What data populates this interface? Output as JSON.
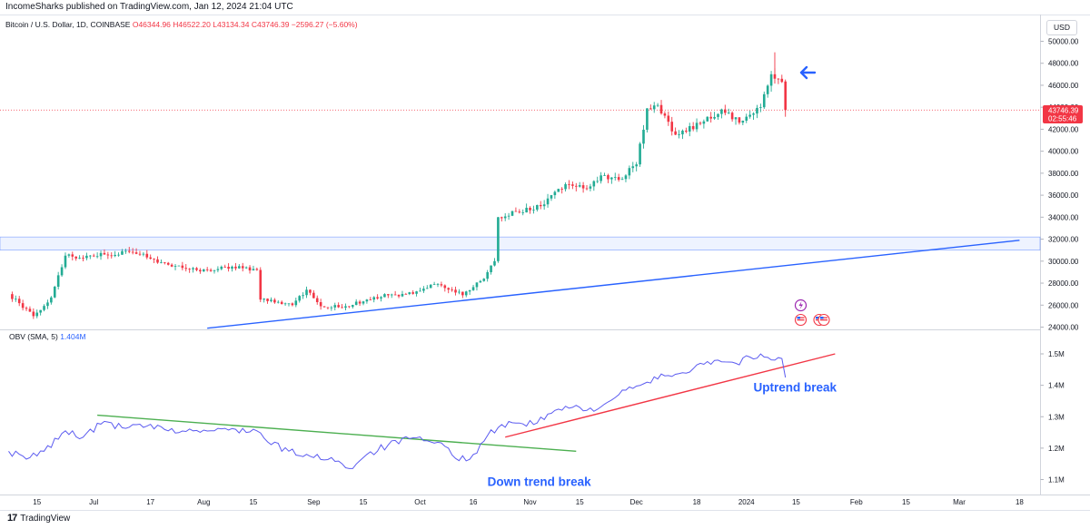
{
  "header": {
    "published": "IncomeSharks published on TradingView.com, Jan 12, 2024 21:04 UTC"
  },
  "symbol": {
    "name": "Bitcoin / U.S. Dollar, 1D, COINBASE",
    "open": "O46344.96",
    "high": "H46522.20",
    "low": "L43134.34",
    "close": "C43746.39",
    "change": "−2596.27 (−5.60%)"
  },
  "currency_button": "USD",
  "price_badge": {
    "price": "43746.39",
    "timer": "02:55:46"
  },
  "obv_label": {
    "name": "OBV (SMA, 5)",
    "value": "1.404M"
  },
  "footer": {
    "logo": "17",
    "brand": "TradingView"
  },
  "colors": {
    "up": "#22ab94",
    "down": "#f23645",
    "trend": "#2962ff",
    "obv": "#5b5bf0",
    "green_line": "#4caf50",
    "red_line": "#f23645"
  },
  "chart_data": {
    "type": "candlestick",
    "title": "Bitcoin / U.S. Dollar, 1D, COINBASE",
    "price_axis": {
      "ylim": [
        23800,
        51000
      ],
      "ticks": [
        "50000.00",
        "48000.00",
        "46000.00",
        "44000.00",
        "42000.00",
        "40000.00",
        "38000.00",
        "36000.00",
        "34000.00",
        "32000.00",
        "30000.00",
        "28000.00",
        "26000.00",
        "24000.00"
      ]
    },
    "obv_axis": {
      "ylim": [
        1.07,
        1.57
      ],
      "ticks": [
        {
          "label": "1.5M",
          "v": 1.5
        },
        {
          "label": "1.4M",
          "v": 1.4
        },
        {
          "label": "1.3M",
          "v": 1.3
        },
        {
          "label": "1.2M",
          "v": 1.2
        },
        {
          "label": "1.1M",
          "v": 1.1
        }
      ]
    },
    "time_axis": {
      "xlim": [
        0,
        285
      ],
      "ticks": [
        {
          "label": "15",
          "d": 8
        },
        {
          "label": "Jul",
          "d": 24
        },
        {
          "label": "17",
          "d": 40
        },
        {
          "label": "Aug",
          "d": 55
        },
        {
          "label": "15",
          "d": 69
        },
        {
          "label": "Sep",
          "d": 86
        },
        {
          "label": "15",
          "d": 100
        },
        {
          "label": "Oct",
          "d": 116
        },
        {
          "label": "16",
          "d": 131
        },
        {
          "label": "Nov",
          "d": 147
        },
        {
          "label": "15",
          "d": 161
        },
        {
          "label": "Dec",
          "d": 177
        },
        {
          "label": "18",
          "d": 194
        },
        {
          "label": "2024",
          "d": 208
        },
        {
          "label": "15",
          "d": 222
        },
        {
          "label": "Feb",
          "d": 239
        },
        {
          "label": "15",
          "d": 253
        },
        {
          "label": "Mar",
          "d": 268
        },
        {
          "label": "18",
          "d": 285
        }
      ]
    },
    "resistance_zone": [
      31000,
      32200
    ],
    "last_price_line": 43746.39,
    "anchors": [
      {
        "d": 0,
        "p": 27000
      },
      {
        "d": 7,
        "p": 25000
      },
      {
        "d": 12,
        "p": 26700
      },
      {
        "d": 16,
        "p": 30500
      },
      {
        "d": 20,
        "p": 30300
      },
      {
        "d": 27,
        "p": 30600
      },
      {
        "d": 35,
        "p": 30800
      },
      {
        "d": 37,
        "p": 30600
      },
      {
        "d": 43,
        "p": 29900
      },
      {
        "d": 50,
        "p": 29300
      },
      {
        "d": 56,
        "p": 29200
      },
      {
        "d": 63,
        "p": 29500
      },
      {
        "d": 70,
        "p": 29200
      },
      {
        "d": 71,
        "p": 26500
      },
      {
        "d": 80,
        "p": 26000
      },
      {
        "d": 84,
        "p": 27400
      },
      {
        "d": 88,
        "p": 25900
      },
      {
        "d": 95,
        "p": 25900
      },
      {
        "d": 102,
        "p": 26500
      },
      {
        "d": 106,
        "p": 27000
      },
      {
        "d": 110,
        "p": 26800
      },
      {
        "d": 116,
        "p": 27300
      },
      {
        "d": 120,
        "p": 27900
      },
      {
        "d": 125,
        "p": 27400
      },
      {
        "d": 128,
        "p": 26900
      },
      {
        "d": 134,
        "p": 28400
      },
      {
        "d": 137,
        "p": 30000
      },
      {
        "d": 138,
        "p": 34000
      },
      {
        "d": 143,
        "p": 34500
      },
      {
        "d": 150,
        "p": 35000
      },
      {
        "d": 157,
        "p": 37000
      },
      {
        "d": 163,
        "p": 36600
      },
      {
        "d": 167,
        "p": 37800
      },
      {
        "d": 172,
        "p": 37400
      },
      {
        "d": 177,
        "p": 38800
      },
      {
        "d": 180,
        "p": 43900
      },
      {
        "d": 183,
        "p": 44200
      },
      {
        "d": 188,
        "p": 41500
      },
      {
        "d": 195,
        "p": 42500
      },
      {
        "d": 201,
        "p": 43800
      },
      {
        "d": 206,
        "p": 42600
      },
      {
        "d": 212,
        "p": 44000
      },
      {
        "d": 215,
        "p": 47000
      },
      {
        "d": 216,
        "p": 46600
      },
      {
        "d": 218,
        "p": 46300
      },
      {
        "d": 219,
        "p": 43746.39
      }
    ],
    "obv_anchors": [
      {
        "d": 0,
        "v": 1.19
      },
      {
        "d": 5,
        "v": 1.165
      },
      {
        "d": 10,
        "v": 1.19
      },
      {
        "d": 16,
        "v": 1.255
      },
      {
        "d": 21,
        "v": 1.235
      },
      {
        "d": 27,
        "v": 1.285
      },
      {
        "d": 32,
        "v": 1.265
      },
      {
        "d": 39,
        "v": 1.27
      },
      {
        "d": 45,
        "v": 1.255
      },
      {
        "d": 52,
        "v": 1.255
      },
      {
        "d": 58,
        "v": 1.255
      },
      {
        "d": 64,
        "v": 1.26
      },
      {
        "d": 70,
        "v": 1.255
      },
      {
        "d": 73,
        "v": 1.22
      },
      {
        "d": 79,
        "v": 1.19
      },
      {
        "d": 86,
        "v": 1.17
      },
      {
        "d": 91,
        "v": 1.17
      },
      {
        "d": 96,
        "v": 1.135
      },
      {
        "d": 101,
        "v": 1.18
      },
      {
        "d": 107,
        "v": 1.21
      },
      {
        "d": 113,
        "v": 1.23
      },
      {
        "d": 119,
        "v": 1.22
      },
      {
        "d": 124,
        "v": 1.2
      },
      {
        "d": 127,
        "v": 1.16
      },
      {
        "d": 131,
        "v": 1.18
      },
      {
        "d": 135,
        "v": 1.24
      },
      {
        "d": 139,
        "v": 1.275
      },
      {
        "d": 144,
        "v": 1.28
      },
      {
        "d": 149,
        "v": 1.28
      },
      {
        "d": 154,
        "v": 1.32
      },
      {
        "d": 159,
        "v": 1.33
      },
      {
        "d": 163,
        "v": 1.32
      },
      {
        "d": 168,
        "v": 1.34
      },
      {
        "d": 172,
        "v": 1.37
      },
      {
        "d": 176,
        "v": 1.39
      },
      {
        "d": 180,
        "v": 1.41
      },
      {
        "d": 185,
        "v": 1.43
      },
      {
        "d": 190,
        "v": 1.44
      },
      {
        "d": 195,
        "v": 1.47
      },
      {
        "d": 200,
        "v": 1.48
      },
      {
        "d": 205,
        "v": 1.47
      },
      {
        "d": 209,
        "v": 1.49
      },
      {
        "d": 213,
        "v": 1.49
      },
      {
        "d": 216,
        "v": 1.48
      },
      {
        "d": 218,
        "v": 1.485
      },
      {
        "d": 219,
        "v": 1.425
      }
    ],
    "trendlines": [
      {
        "name": "price-support-trendline",
        "pane": "price",
        "color": "#2962ff",
        "from": {
          "d": 56,
          "p": 23900
        },
        "to": {
          "d": 285,
          "p": 31900
        }
      },
      {
        "name": "obv-down-trendline",
        "pane": "obv",
        "color": "#4caf50",
        "from": {
          "d": 25,
          "v": 1.305
        },
        "to": {
          "d": 160,
          "v": 1.19
        }
      },
      {
        "name": "obv-up-trendline",
        "pane": "obv",
        "color": "#f23645",
        "from": {
          "d": 140,
          "v": 1.235
        },
        "to": {
          "d": 233,
          "v": 1.5
        }
      }
    ],
    "annotations": [
      {
        "name": "down-trend-break-label",
        "text": "Down trend break"
      },
      {
        "name": "uptrend-break-label",
        "text": "Uptrend break"
      }
    ]
  }
}
